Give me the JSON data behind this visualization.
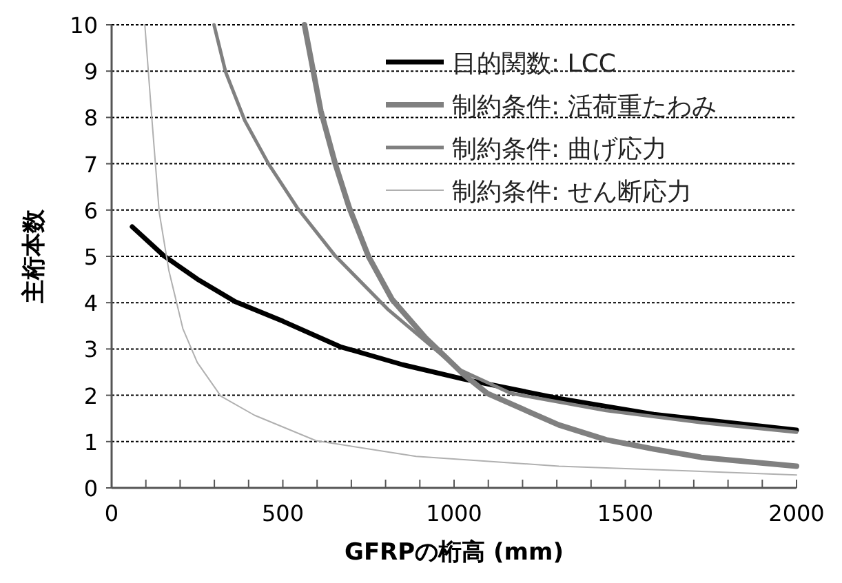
{
  "chart_data": {
    "type": "line",
    "xlabel": "GFRPの桁高 (mm)",
    "ylabel": "主桁本数",
    "xlim": [
      0,
      2000
    ],
    "ylim": [
      0,
      10
    ],
    "xticks": [
      0,
      {
        "value": 100,
        "label": null
      },
      {
        "value": 200,
        "label": null
      },
      {
        "value": 300,
        "label": null
      },
      {
        "value": 400,
        "label": null
      },
      500,
      {
        "value": 600,
        "label": null
      },
      {
        "value": 700,
        "label": null
      },
      {
        "value": 800,
        "label": null
      },
      {
        "value": 900,
        "label": null
      },
      1000,
      {
        "value": 1100,
        "label": null
      },
      {
        "value": 1200,
        "label": null
      },
      {
        "value": 1300,
        "label": null
      },
      {
        "value": 1400,
        "label": null
      },
      1500,
      {
        "value": 1600,
        "label": null
      },
      {
        "value": 1700,
        "label": null
      },
      {
        "value": 1800,
        "label": null
      },
      {
        "value": 1900,
        "label": null
      },
      2000
    ],
    "yticks": [
      0,
      1,
      2,
      3,
      4,
      5,
      6,
      7,
      8,
      9,
      10
    ],
    "grid": "y",
    "legend": "top right",
    "series": [
      {
        "name": "目的関数: LCC",
        "color": "#000000",
        "x": [
          60,
          153,
          250,
          361,
          500,
          667,
          850,
          1028,
          1306,
          1583,
          2000
        ],
        "values": [
          5.64,
          5.01,
          4.51,
          4.02,
          3.6,
          3.05,
          2.66,
          2.35,
          1.93,
          1.59,
          1.25
        ]
      },
      {
        "name": "制約条件: 活荷重たわみ",
        "color": "#808080",
        "x": [
          563,
          611,
          653,
          694,
          750,
          819,
          917,
          1028,
          1097,
          1306,
          1444,
          1583,
          1722,
          2000
        ],
        "values": [
          10,
          8.14,
          7.0,
          6.05,
          5.0,
          4.07,
          3.24,
          2.45,
          2.04,
          1.36,
          1.04,
          0.84,
          0.66,
          0.47
        ]
      },
      {
        "name": "制約条件: 曲げ応力",
        "color": "#808080",
        "x": [
          299,
          333,
          389,
          458,
          542,
          653,
          806,
          1014,
          1167,
          1444,
          1722,
          2000
        ],
        "values": [
          10,
          8.98,
          7.93,
          7.0,
          6.05,
          5.01,
          3.86,
          2.56,
          2.04,
          1.67,
          1.41,
          1.2
        ]
      },
      {
        "name": "制約条件: せん断応力",
        "color": "#b0b0b0",
        "x": [
          97,
          118,
          139,
          167,
          208,
          250,
          319,
          417,
          597,
          889,
          1306,
          2000
        ],
        "values": [
          10,
          7.93,
          5.95,
          4.7,
          3.44,
          2.71,
          1.98,
          1.57,
          1.02,
          0.68,
          0.47,
          0.28
        ]
      }
    ]
  }
}
